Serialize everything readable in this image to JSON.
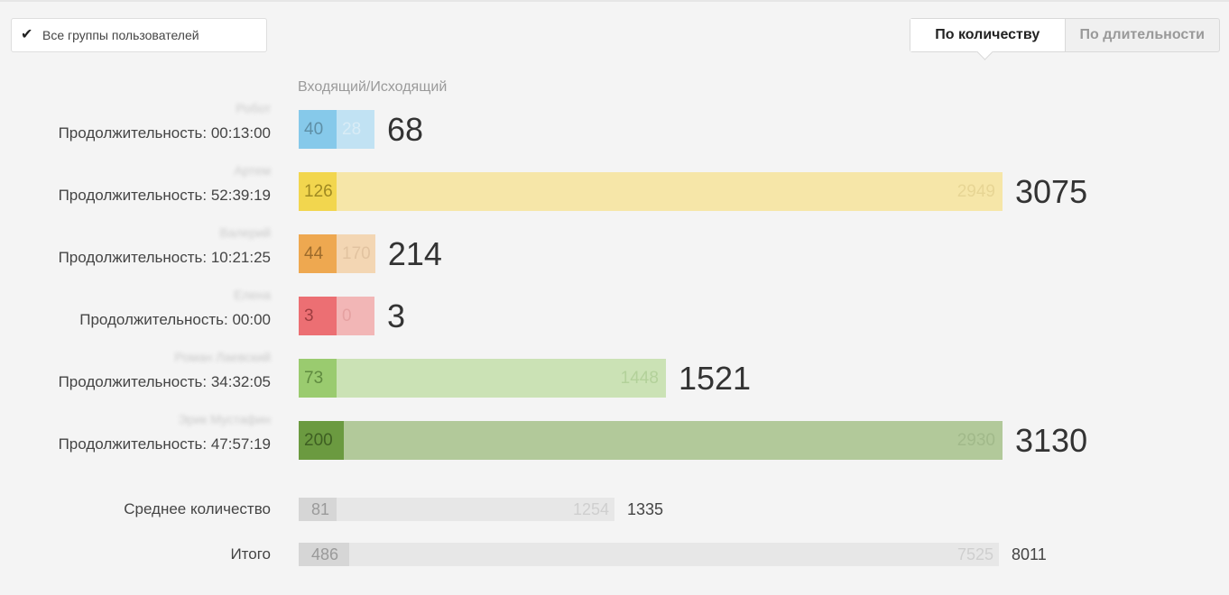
{
  "filter": {
    "checked": true,
    "label": "Все группы пользователей",
    "check_icon": "checkmark-icon"
  },
  "toggle": {
    "count_label": "По количеству",
    "duration_label": "По длительности",
    "active": "count"
  },
  "column_title": "Входящий/Исходящий",
  "rows": [
    {
      "name": "Робот",
      "duration": "Продолжительность: 00:13:00",
      "incoming": 40,
      "outgoing": 28,
      "total": 68,
      "in_color": "#86c9ea",
      "out_color": "#c1e2f3",
      "in_text": "#5e8fa6",
      "out_text": "#d9ecf6"
    },
    {
      "name": "Артем",
      "duration": "Продолжительность: 52:39:19",
      "incoming": 126,
      "outgoing": 2949,
      "total": 3075,
      "in_color": "#f2d64e",
      "out_color": "#f6e6a8",
      "in_text": "#a08a22",
      "out_text": "#e7d594"
    },
    {
      "name": "Валерий",
      "duration": "Продолжительность: 10:21:25",
      "incoming": 44,
      "outgoing": 170,
      "total": 214,
      "in_color": "#eea850",
      "out_color": "#f3d6b3",
      "in_text": "#9c6b2c",
      "out_text": "#e2c3a0"
    },
    {
      "name": "Елена",
      "duration": "Продолжительность: 00:00",
      "incoming": 3,
      "outgoing": 0,
      "total": 3,
      "in_color": "#ec6f73",
      "out_color": "#f2b6b6",
      "in_text": "#9e3d40",
      "out_text": "#e5a1a1"
    },
    {
      "name": "Роман Лаевский",
      "duration": "Продолжительность: 34:32:05",
      "incoming": 73,
      "outgoing": 1448,
      "total": 1521,
      "in_color": "#9acb6f",
      "out_color": "#cbe2b5",
      "in_text": "#5f8a3f",
      "out_text": "#b3d19a"
    },
    {
      "name": "Эрик Мустафин",
      "duration": "Продолжительность: 47:57:19",
      "incoming": 200,
      "outgoing": 2930,
      "total": 3130,
      "in_color": "#6b9a40",
      "out_color": "#b2c99a",
      "in_text": "#3e5f22",
      "out_text": "#a1b98a"
    }
  ],
  "summary": [
    {
      "label": "Среднее количество",
      "incoming": 81,
      "outgoing": 1254,
      "total": 1335
    },
    {
      "label": "Итого",
      "incoming": 486,
      "outgoing": 7525,
      "total": 8011
    }
  ]
}
